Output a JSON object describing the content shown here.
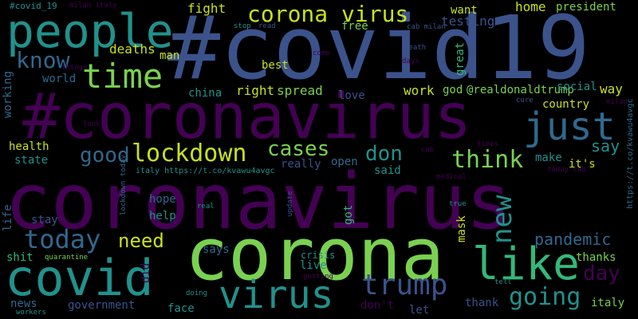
{
  "palette": {
    "purple": "#440154",
    "indigo": "#3b528b",
    "blue": "#31688e",
    "teal": "#21918c",
    "green": "#35b779",
    "lime": "#7ad151",
    "yellow": "#c8e020"
  },
  "words": {
    "coronavirus": "coronavirus",
    "covid19_tag": "#covid19",
    "coronavirus_tag": "#coronavirus",
    "corona": "corona",
    "people": "people",
    "time": "time",
    "corona_virus": "corona virus",
    "covid": "covid",
    "virus": "virus",
    "like": "like",
    "just": "just",
    "trump": "trump",
    "lockdown": "lockdown",
    "cases": "cases",
    "today": "today",
    "new": "new",
    "good": "good",
    "know": "know",
    "think": "think",
    "don": "don",
    "going": "going",
    "pandemic": "pandemic",
    "need": "need",
    "day": "day",
    "say": "say",
    "fight": "fight",
    "want": "want",
    "testing": "testing",
    "home": "home",
    "president": "president",
    "deaths": "deaths",
    "man": "man",
    "free": "free",
    "best": "best",
    "world": "world",
    "spread": "spread",
    "right": "right",
    "china": "china",
    "love": "love",
    "work": "work",
    "god": "god",
    "realdonaldtrump": "@realdonaldtrump",
    "country": "country",
    "way": "way",
    "social": "social",
    "great": "great",
    "health": "health",
    "state": "state",
    "really": "really",
    "open": "open",
    "make": "make",
    "its": "it's",
    "said": "said",
    "help": "help",
    "hope": "hope",
    "stay": "stay",
    "life": "life",
    "working": "working",
    "got": "got",
    "mask": "mask",
    "says": "says",
    "live": "live",
    "crisis": "crisis",
    "thanks": "thanks",
    "thank": "thank",
    "italy": "italy",
    "shit": "shit",
    "news": "news",
    "government": "government",
    "face": "face",
    "did": "did",
    "dont": "don't",
    "let": "let",
    "quarantine": "quarantine",
    "workers": "workers",
    "doing": "doing",
    "getting": "getting",
    "tell": "tell",
    "real": "real",
    "update": "update",
    "true": "true",
    "medical": "medical",
    "cab": "cab",
    "times": "times",
    "today_cab": "today cab",
    "italy_link": "italy https://t.co/kvawu4avgc",
    "link_vertical": "https://t.co/kvawu4avgc",
    "lockdown_today": "lockdown today",
    "covid_19_tag": "#covid_19",
    "milan_italy": "milan italy",
    "stop": "stop",
    "read": "read",
    "cab_milan": "cab milan",
    "come": "come",
    "death": "death",
    "days": "days",
    "things": "things",
    "look": "look",
    "cure": "cure",
    "milan": "milan"
  }
}
